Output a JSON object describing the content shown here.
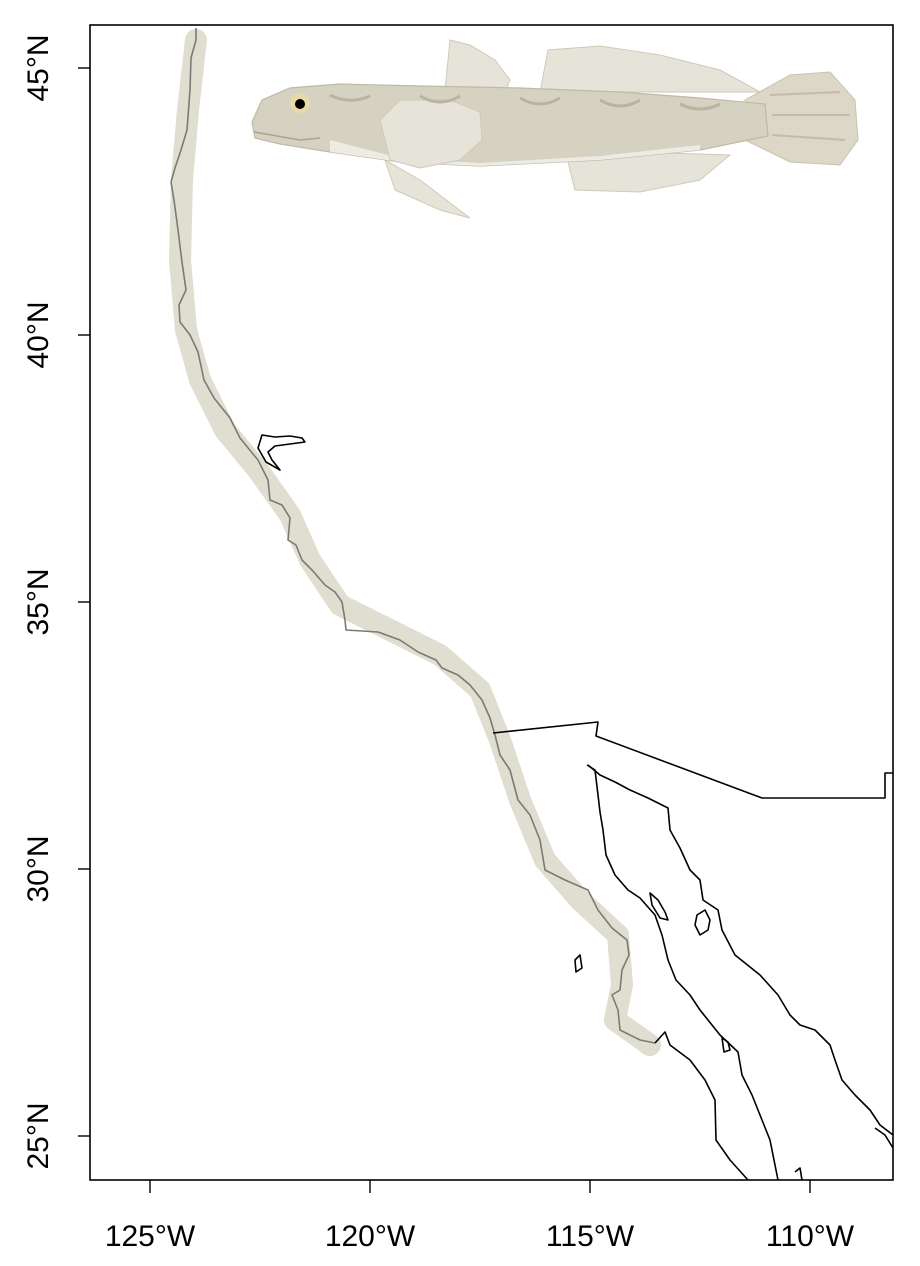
{
  "map": {
    "x_ticks": [
      "125°W",
      "120°W",
      "115°W",
      "110°W"
    ],
    "y_ticks": [
      "45°N",
      "40°N",
      "35°N",
      "30°N",
      "25°N"
    ],
    "colors": {
      "range": "#ddd9cc",
      "coastline": "#000000",
      "coastline_in_range": "#7d7a72",
      "fish_body": "#d6d2c2",
      "fish_pattern": "#b9b4a2"
    },
    "icon": "fish-illustration"
  }
}
